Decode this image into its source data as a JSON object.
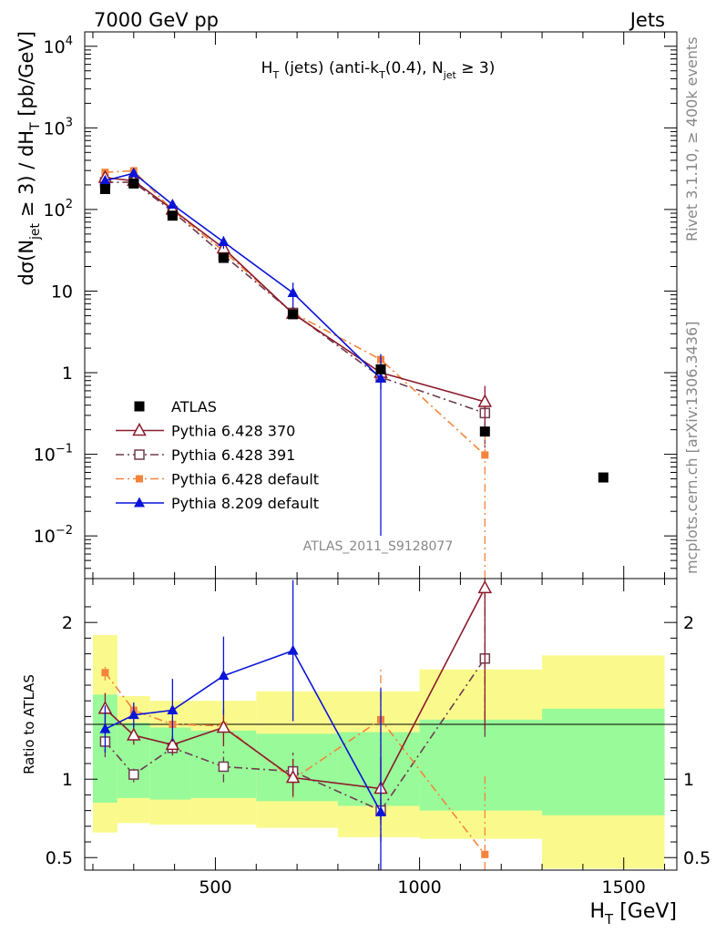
{
  "header": {
    "energy_label": "7000 GeV pp",
    "category_label": "Jets"
  },
  "side_labels": {
    "rivet": "Rivet 3.1.10, ≥ 400k events",
    "mcplots": "mcplots.cern.ch [arXiv:1306.3436]"
  },
  "colors": {
    "atlas": "#000000",
    "p6_370": "#8b1a2b",
    "p6_391": "#6e3c50",
    "p6_default": "#f5843a",
    "p8_default": "#0a14d8",
    "band_inner": "#99fa99",
    "band_outer": "#fafa8c"
  },
  "chart_data": [
    {
      "type": "line",
      "panel": "main",
      "title": "H_T (jets) (anti-k_T(0.4), N_jet ≥ 3)",
      "title_parts": {
        "a": "H",
        "a_sub": "T",
        "b": " (jets) (anti-k",
        "b_sub": "T",
        "c": "(0.4), N",
        "c_sub": "jet",
        "d": " ≥ 3)"
      },
      "ylabel": "dσ(N_jet ≥ 3) / dH_T [pb/GeV]",
      "ylabel_parts": {
        "a": "dσ(N",
        "a_sub": "jet",
        "b": " ≥ 3) / dH",
        "b_sub": "T",
        "c": " [pb/GeV]"
      },
      "yscale": "log",
      "ylim": [
        0.003,
        15000
      ],
      "xlim": [
        180,
        1630
      ],
      "yticks": [
        {
          "base": "10",
          "exp": "−2",
          "v": 0.01
        },
        {
          "base": "10",
          "exp": "−1",
          "v": 0.1
        },
        {
          "base": "1",
          "exp": "",
          "v": 1
        },
        {
          "base": "10",
          "exp": "",
          "v": 10
        },
        {
          "base": "10",
          "exp": "2",
          "v": 100
        },
        {
          "base": "10",
          "exp": "3",
          "v": 1000
        },
        {
          "base": "10",
          "exp": "4",
          "v": 10000
        }
      ],
      "watermark": "ATLAS_2011_S9128077",
      "series": [
        {
          "name": "ATLAS",
          "marker": "square-filled",
          "line": "none",
          "x": [
            230,
            300,
            395,
            520,
            690,
            905,
            1160,
            1450
          ],
          "y": [
            178,
            208,
            84,
            25.5,
            5.2,
            1.1,
            0.19,
            0.052
          ],
          "err": [
            0,
            0,
            0,
            0,
            0,
            0,
            0,
            0
          ]
        },
        {
          "name": "Pythia 6.428 370",
          "marker": "triangle-open",
          "line": "solid",
          "x": [
            230,
            300,
            395,
            520,
            690,
            905,
            1160
          ],
          "y": [
            245,
            225,
            100,
            33.5,
            5.3,
            1.0,
            0.44
          ],
          "err": [
            25,
            15,
            7,
            3,
            0.6,
            0.25,
            0.25
          ]
        },
        {
          "name": "Pythia 6.428 391",
          "marker": "square-open",
          "line": "dashdot",
          "x": [
            230,
            300,
            395,
            520,
            690,
            905,
            1160
          ],
          "y": [
            215,
            215,
            95,
            27.5,
            5.4,
            0.88,
            0.32
          ],
          "err": [
            20,
            15,
            7,
            3,
            0.6,
            0.25,
            0.2
          ]
        },
        {
          "name": "Pythia 6.428 default",
          "marker": "square-small-filled",
          "line": "dashdot",
          "x": [
            230,
            300,
            395,
            520,
            690,
            905,
            1160
          ],
          "y": [
            285,
            298,
            98,
            31,
            5.4,
            1.45,
            0.098
          ],
          "err": [
            20,
            20,
            7,
            3,
            0.6,
            0.35,
            0.095
          ]
        },
        {
          "name": "Pythia 8.209 default",
          "marker": "triangle-filled",
          "line": "solid",
          "x": [
            230,
            300,
            395,
            520,
            690,
            905
          ],
          "y": [
            225,
            278,
            115,
            40,
            9.5,
            0.85
          ],
          "err": [
            25,
            20,
            12,
            7,
            3.2,
            0.84
          ]
        }
      ]
    },
    {
      "type": "line",
      "panel": "ratio",
      "ylabel": "Ratio to ATLAS",
      "yscale": "linear",
      "ylim": [
        0.42,
        2.28
      ],
      "xlabel": "H_T [GeV]",
      "xlabel_parts": {
        "a": "H",
        "a_sub": "T",
        "b": " [GeV]"
      },
      "xlim": [
        180,
        1630
      ],
      "xticks": [
        {
          "label": "500",
          "v": 500
        },
        {
          "label": "1000",
          "v": 1000
        },
        {
          "label": "1500",
          "v": 1500
        }
      ],
      "yticks": [
        {
          "label": "0.5",
          "v": 0.5
        },
        {
          "label": "1",
          "v": 1
        },
        {
          "label": "2",
          "v": 2
        }
      ],
      "bins": [
        200,
        260,
        340,
        440,
        600,
        800,
        1000,
        1300,
        1600
      ],
      "band_inner": [
        [
          0.85,
          1.54
        ],
        [
          0.88,
          1.36
        ],
        [
          0.87,
          1.33
        ],
        [
          0.88,
          1.31
        ],
        [
          0.86,
          1.29
        ],
        [
          0.83,
          1.3
        ],
        [
          0.8,
          1.38
        ],
        [
          0.77,
          1.45
        ]
      ],
      "band_outer": [
        [
          0.66,
          1.92
        ],
        [
          0.72,
          1.53
        ],
        [
          0.71,
          1.5
        ],
        [
          0.71,
          1.5
        ],
        [
          0.69,
          1.56
        ],
        [
          0.63,
          1.56
        ],
        [
          0.62,
          1.7
        ],
        [
          0.43,
          1.79
        ]
      ],
      "series": [
        {
          "name": "Pythia 6.428 370",
          "x": [
            230,
            300,
            395,
            520,
            690,
            905,
            1160
          ],
          "y": [
            1.45,
            1.28,
            1.22,
            1.33,
            1.01,
            0.94,
            2.22
          ],
          "err": [
            0.1,
            0.06,
            0.06,
            0.12,
            0.12,
            0.2,
            0.9
          ]
        },
        {
          "name": "Pythia 6.428 391",
          "x": [
            230,
            300,
            395,
            520,
            690,
            905,
            1160
          ],
          "y": [
            1.24,
            1.03,
            1.2,
            1.08,
            1.05,
            0.8,
            1.77
          ],
          "err": [
            0.1,
            0.05,
            0.05,
            0.1,
            0.12,
            0.2,
            0.5
          ]
        },
        {
          "name": "Pythia 6.428 default",
          "x": [
            230,
            300,
            395,
            520,
            690,
            905,
            1160
          ],
          "y": [
            1.68,
            1.44,
            1.35,
            1.34,
            1.0,
            1.38,
            0.52
          ],
          "err": [
            0.05,
            0.05,
            0.05,
            0.1,
            0.12,
            0.32,
            0.5
          ]
        },
        {
          "name": "Pythia 8.209 default",
          "x": [
            230,
            300,
            395,
            520,
            690,
            905
          ],
          "y": [
            1.32,
            1.41,
            1.44,
            1.66,
            1.82,
            0.79
          ],
          "err": [
            0.15,
            0.08,
            0.2,
            0.25,
            0.45,
            0.79
          ]
        }
      ]
    }
  ]
}
